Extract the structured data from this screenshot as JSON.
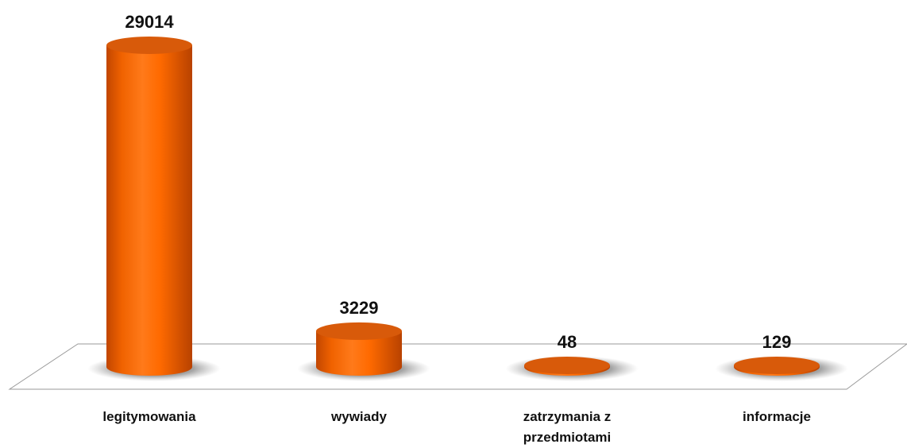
{
  "chart_data": {
    "type": "bar",
    "style": "3d-cylinder",
    "categories": [
      "legitymowania",
      "wywiady",
      "zatrzymania z przedmiotami",
      "informacje"
    ],
    "category_lines": [
      [
        "legitymowania"
      ],
      [
        "wywiady"
      ],
      [
        "zatrzymania z",
        "przedmiotami"
      ],
      [
        "informacje"
      ]
    ],
    "values": [
      29014,
      3229,
      48,
      129
    ],
    "value_labels": [
      "29014",
      "3229",
      "48",
      "129"
    ],
    "title": "",
    "xlabel": "",
    "ylabel": "",
    "ylim": [
      0,
      29014
    ],
    "grid": false,
    "legend": "none",
    "colors": {
      "bar": "#ff6a00",
      "bar_dark": "#c44a00",
      "bar_top": "#d85a0a",
      "shadow": "#555555",
      "floor_line": "#9a9a9a"
    }
  }
}
